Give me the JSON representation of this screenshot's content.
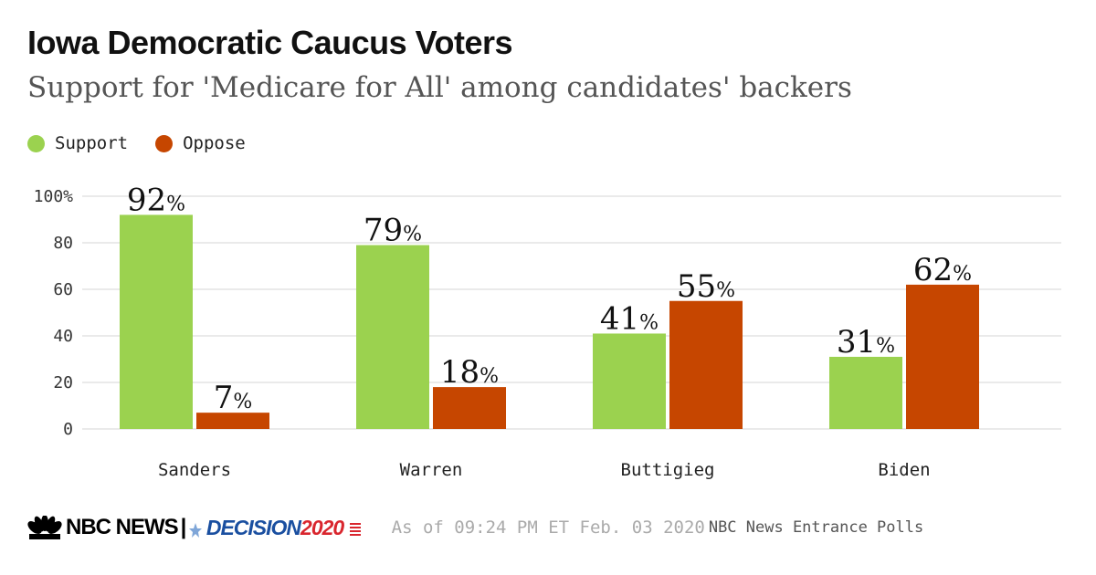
{
  "header": {
    "title": "Iowa Democratic Caucus Voters",
    "subtitle": "Support for 'Medicare for All' among candidates' backers"
  },
  "colors": {
    "support": "#9bd24f",
    "oppose": "#c64600",
    "grid": "#e3e3e3",
    "axis_text": "#333333"
  },
  "footer": {
    "brand": "NBC NEWS",
    "separator": "|",
    "decision_word": "DECISION",
    "decision_year": "2020",
    "timestamp": "As of 09:24 PM ET Feb. 03 2020",
    "source": "NBC News Entrance Polls"
  },
  "chart_data": {
    "type": "bar",
    "title": "Iowa Democratic Caucus Voters",
    "subtitle": "Support for 'Medicare for All' among candidates' backers",
    "categories": [
      "Sanders",
      "Warren",
      "Buttigieg",
      "Biden"
    ],
    "series": [
      {
        "name": "Support",
        "values": [
          92,
          79,
          41,
          31
        ]
      },
      {
        "name": "Oppose",
        "values": [
          7,
          18,
          55,
          62
        ]
      }
    ],
    "value_suffix": "%",
    "yticks": [
      0,
      20,
      40,
      60,
      80,
      100
    ],
    "ytick_labels": [
      "0",
      "20",
      "40",
      "60",
      "80",
      "100%"
    ],
    "ylim": [
      0,
      100
    ],
    "xlabel": "",
    "ylabel": "",
    "grid": true,
    "legend_position": "top-left"
  }
}
